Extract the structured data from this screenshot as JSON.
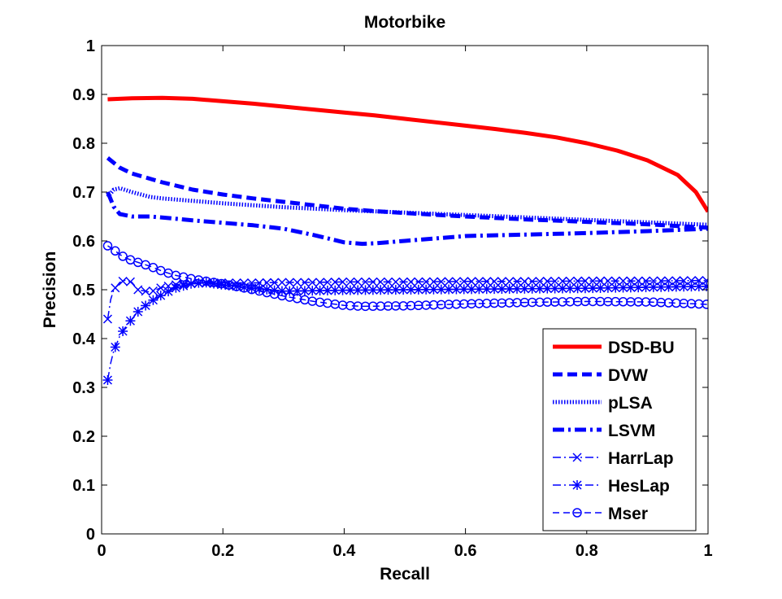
{
  "chart_data": {
    "type": "line",
    "title": "Motorbike",
    "xlabel": "Recall",
    "ylabel": "Precision",
    "xlim": [
      0,
      1
    ],
    "ylim": [
      0,
      1
    ],
    "xticks": [
      "0",
      "0.2",
      "0.4",
      "0.6",
      "0.8",
      "1"
    ],
    "yticks": [
      "0",
      "0.1",
      "0.2",
      "0.3",
      "0.4",
      "0.5",
      "0.6",
      "0.7",
      "0.8",
      "0.9",
      "1"
    ],
    "legend_position": "lower-right",
    "series": [
      {
        "name": "DSD-BU",
        "color": "#ff0000",
        "style": "solid-thick",
        "marker": "none",
        "x": [
          0.01,
          0.05,
          0.1,
          0.15,
          0.2,
          0.25,
          0.3,
          0.35,
          0.4,
          0.45,
          0.5,
          0.55,
          0.6,
          0.65,
          0.7,
          0.75,
          0.8,
          0.85,
          0.9,
          0.95,
          0.98,
          1.0
        ],
        "y": [
          0.89,
          0.892,
          0.893,
          0.891,
          0.886,
          0.881,
          0.875,
          0.869,
          0.863,
          0.857,
          0.85,
          0.843,
          0.836,
          0.829,
          0.821,
          0.812,
          0.8,
          0.785,
          0.765,
          0.735,
          0.7,
          0.66
        ]
      },
      {
        "name": "DVW",
        "color": "#0000ff",
        "style": "dashed-thick",
        "marker": "none",
        "x": [
          0.01,
          0.03,
          0.05,
          0.1,
          0.15,
          0.2,
          0.25,
          0.3,
          0.35,
          0.4,
          0.45,
          0.5,
          0.6,
          0.7,
          0.8,
          0.9,
          1.0
        ],
        "y": [
          0.77,
          0.75,
          0.738,
          0.72,
          0.705,
          0.695,
          0.687,
          0.68,
          0.673,
          0.666,
          0.661,
          0.657,
          0.65,
          0.644,
          0.639,
          0.634,
          0.627
        ]
      },
      {
        "name": "pLSA",
        "color": "#0000ff",
        "style": "dotted-thick",
        "marker": "none",
        "x": [
          0.01,
          0.02,
          0.03,
          0.05,
          0.08,
          0.1,
          0.15,
          0.2,
          0.3,
          0.4,
          0.5,
          0.6,
          0.7,
          0.8,
          0.9,
          1.0
        ],
        "y": [
          0.69,
          0.705,
          0.708,
          0.7,
          0.69,
          0.687,
          0.682,
          0.677,
          0.669,
          0.663,
          0.658,
          0.653,
          0.648,
          0.643,
          0.638,
          0.633
        ]
      },
      {
        "name": "LSVM",
        "color": "#0000ff",
        "style": "dashdot-thick",
        "marker": "none",
        "x": [
          0.01,
          0.02,
          0.03,
          0.05,
          0.08,
          0.1,
          0.15,
          0.2,
          0.25,
          0.3,
          0.35,
          0.4,
          0.43,
          0.45,
          0.5,
          0.6,
          0.7,
          0.8,
          0.9,
          1.0
        ],
        "y": [
          0.7,
          0.67,
          0.655,
          0.65,
          0.65,
          0.648,
          0.642,
          0.637,
          0.632,
          0.625,
          0.612,
          0.597,
          0.594,
          0.595,
          0.6,
          0.61,
          0.613,
          0.616,
          0.62,
          0.625
        ]
      },
      {
        "name": "HarrLap",
        "color": "#0000ff",
        "style": "dashdot-thin",
        "marker": "x",
        "x": [
          0.01,
          0.015,
          0.02,
          0.03,
          0.04,
          0.05,
          0.06,
          0.08,
          0.1,
          0.12,
          0.15,
          0.2,
          0.25,
          0.3,
          0.35,
          0.4,
          0.5,
          0.6,
          0.7,
          0.8,
          0.9,
          1.0
        ],
        "y": [
          0.44,
          0.48,
          0.5,
          0.515,
          0.52,
          0.515,
          0.5,
          0.495,
          0.505,
          0.51,
          0.513,
          0.514,
          0.514,
          0.515,
          0.515,
          0.516,
          0.516,
          0.517,
          0.517,
          0.518,
          0.518,
          0.519
        ]
      },
      {
        "name": "HesLap",
        "color": "#0000ff",
        "style": "dashdot-thin",
        "marker": "star",
        "x": [
          0.01,
          0.015,
          0.02,
          0.03,
          0.04,
          0.05,
          0.06,
          0.08,
          0.1,
          0.12,
          0.15,
          0.17,
          0.2,
          0.25,
          0.3,
          0.35,
          0.4,
          0.5,
          0.6,
          0.7,
          0.8,
          0.9,
          1.0
        ],
        "y": [
          0.315,
          0.35,
          0.375,
          0.405,
          0.425,
          0.44,
          0.455,
          0.475,
          0.49,
          0.503,
          0.513,
          0.515,
          0.51,
          0.503,
          0.497,
          0.498,
          0.499,
          0.5,
          0.501,
          0.502,
          0.503,
          0.505,
          0.507
        ]
      },
      {
        "name": "Mser",
        "color": "#0000ff",
        "style": "dashed-thin",
        "marker": "circle",
        "x": [
          0.01,
          0.02,
          0.03,
          0.04,
          0.05,
          0.06,
          0.07,
          0.08,
          0.1,
          0.12,
          0.15,
          0.2,
          0.25,
          0.3,
          0.35,
          0.4,
          0.43,
          0.5,
          0.6,
          0.7,
          0.8,
          0.9,
          1.0
        ],
        "y": [
          0.59,
          0.582,
          0.572,
          0.565,
          0.56,
          0.556,
          0.552,
          0.548,
          0.538,
          0.53,
          0.522,
          0.512,
          0.5,
          0.487,
          0.476,
          0.468,
          0.466,
          0.467,
          0.471,
          0.474,
          0.476,
          0.475,
          0.47
        ]
      }
    ]
  }
}
